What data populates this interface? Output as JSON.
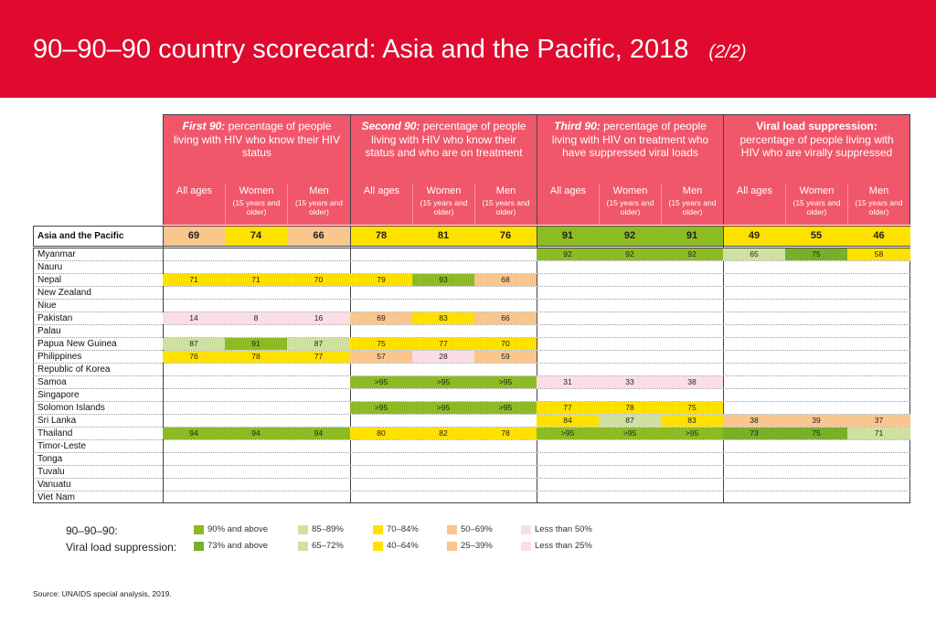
{
  "title": "90–90–90 country scorecard: Asia and the Pacific, 2018",
  "subtitle": "(2/2)",
  "groups": [
    {
      "bold": "First 90:",
      "text": " percentage of people living with HIV who know their HIV status"
    },
    {
      "bold": "Second 90:",
      "text": "  percentage of people living with HIV who know their status and who are on treatment"
    },
    {
      "bold": "Third 90:",
      "text": " percentage of people living with HIV on treatment who have suppressed viral loads"
    },
    {
      "bold": "Viral load suppression:",
      "text": " percentage of people living with HIV who are virally suppressed"
    }
  ],
  "subheaders": {
    "all_ages": "All ages",
    "women": "Women",
    "men": "Men",
    "age_note": "(15 years and older)"
  },
  "colors": {
    "banner": "#e0092e",
    "header": "#f0576b",
    "g90": "#8dbb24",
    "g73": "#7aaf2a",
    "light_green": "#cfe0a0",
    "yellow": "#ffe100",
    "orange": "#f9c68e",
    "pink": "#fbdde5"
  },
  "region": {
    "name": "Asia and the Pacific",
    "values": [
      "69",
      "74",
      "66",
      "78",
      "81",
      "76",
      "91",
      "92",
      "91",
      "49",
      "55",
      "46"
    ],
    "colors": [
      "orange",
      "yellow",
      "orange",
      "yellow",
      "yellow",
      "yellow",
      "g90",
      "g90",
      "g90",
      "yellow",
      "yellow",
      "yellow"
    ]
  },
  "countries": [
    {
      "name": "Myanmar",
      "values": [
        "",
        "",
        "",
        "",
        "",
        "",
        "92",
        "92",
        "92",
        "65",
        "75",
        "58"
      ],
      "colors": [
        "",
        "",
        "",
        "",
        "",
        "",
        "g90",
        "g90",
        "g90",
        "light_green",
        "g73",
        "yellow"
      ]
    },
    {
      "name": "Nauru",
      "values": [
        "",
        "",
        "",
        "",
        "",
        "",
        "",
        "",
        "",
        "",
        "",
        ""
      ],
      "colors": [
        "",
        "",
        "",
        "",
        "",
        "",
        "",
        "",
        "",
        "",
        "",
        ""
      ]
    },
    {
      "name": "Nepal",
      "values": [
        "71",
        "71",
        "70",
        "79",
        "93",
        "68",
        "",
        "",
        "",
        "",
        "",
        ""
      ],
      "colors": [
        "yellow",
        "yellow",
        "yellow",
        "yellow",
        "g90",
        "orange",
        "",
        "",
        "",
        "",
        "",
        ""
      ]
    },
    {
      "name": "New Zealand",
      "values": [
        "",
        "",
        "",
        "",
        "",
        "",
        "",
        "",
        "",
        "",
        "",
        ""
      ],
      "colors": [
        "",
        "",
        "",
        "",
        "",
        "",
        "",
        "",
        "",
        "",
        "",
        ""
      ]
    },
    {
      "name": "Niue",
      "values": [
        "",
        "",
        "",
        "",
        "",
        "",
        "",
        "",
        "",
        "",
        "",
        ""
      ],
      "colors": [
        "",
        "",
        "",
        "",
        "",
        "",
        "",
        "",
        "",
        "",
        "",
        ""
      ]
    },
    {
      "name": "Pakistan",
      "values": [
        "14",
        "8",
        "16",
        "69",
        "83",
        "66",
        "",
        "",
        "",
        "",
        "",
        ""
      ],
      "colors": [
        "pink",
        "pink",
        "pink",
        "orange",
        "yellow",
        "orange",
        "",
        "",
        "",
        "",
        "",
        ""
      ]
    },
    {
      "name": "Palau",
      "values": [
        "",
        "",
        "",
        "",
        "",
        "",
        "",
        "",
        "",
        "",
        "",
        ""
      ],
      "colors": [
        "",
        "",
        "",
        "",
        "",
        "",
        "",
        "",
        "",
        "",
        "",
        ""
      ]
    },
    {
      "name": "Papua New Guinea",
      "values": [
        "87",
        "91",
        "87",
        "75",
        "77",
        "70",
        "",
        "",
        "",
        "",
        "",
        ""
      ],
      "colors": [
        "light_green",
        "g90",
        "light_green",
        "yellow",
        "yellow",
        "yellow",
        "",
        "",
        "",
        "",
        "",
        ""
      ]
    },
    {
      "name": "Philippines",
      "values": [
        "76",
        "78",
        "77",
        "57",
        "28",
        "59",
        "",
        "",
        "",
        "",
        "",
        ""
      ],
      "colors": [
        "yellow",
        "yellow",
        "yellow",
        "orange",
        "pink",
        "orange",
        "",
        "",
        "",
        "",
        "",
        ""
      ]
    },
    {
      "name": "Republic of Korea",
      "values": [
        "",
        "",
        "",
        "",
        "",
        "",
        "",
        "",
        "",
        "",
        "",
        ""
      ],
      "colors": [
        "",
        "",
        "",
        "",
        "",
        "",
        "",
        "",
        "",
        "",
        "",
        ""
      ]
    },
    {
      "name": "Samoa",
      "values": [
        "",
        "",
        "",
        ">95",
        ">95",
        ">95",
        "31",
        "33",
        "38",
        "",
        "",
        ""
      ],
      "colors": [
        "",
        "",
        "",
        "g90",
        "g90",
        "g90",
        "pink",
        "pink",
        "pink",
        "",
        "",
        ""
      ]
    },
    {
      "name": "Singapore",
      "values": [
        "",
        "",
        "",
        "",
        "",
        "",
        "",
        "",
        "",
        "",
        "",
        ""
      ],
      "colors": [
        "",
        "",
        "",
        "",
        "",
        "",
        "",
        "",
        "",
        "",
        "",
        ""
      ]
    },
    {
      "name": "Solomon Islands",
      "values": [
        "",
        "",
        "",
        ">95",
        ">95",
        ">95",
        "77",
        "78",
        "75",
        "",
        "",
        ""
      ],
      "colors": [
        "",
        "",
        "",
        "g90",
        "g90",
        "g90",
        "yellow",
        "yellow",
        "yellow",
        "",
        "",
        ""
      ]
    },
    {
      "name": "Sri Lanka",
      "values": [
        "",
        "",
        "",
        "",
        "",
        "",
        "84",
        "87",
        "83",
        "38",
        "39",
        "37"
      ],
      "colors": [
        "",
        "",
        "",
        "",
        "",
        "",
        "yellow",
        "light_green",
        "yellow",
        "orange",
        "orange",
        "orange"
      ]
    },
    {
      "name": "Thailand",
      "values": [
        "94",
        "94",
        "94",
        "80",
        "82",
        "78",
        ">95",
        ">95",
        ">95",
        "73",
        "75",
        "71"
      ],
      "colors": [
        "g90",
        "g90",
        "g90",
        "yellow",
        "yellow",
        "yellow",
        "g90",
        "g90",
        "g90",
        "g73",
        "g73",
        "light_green"
      ]
    },
    {
      "name": "Timor-Leste",
      "values": [
        "",
        "",
        "",
        "",
        "",
        "",
        "",
        "",
        "",
        "",
        "",
        ""
      ],
      "colors": [
        "",
        "",
        "",
        "",
        "",
        "",
        "",
        "",
        "",
        "",
        "",
        ""
      ]
    },
    {
      "name": "Tonga",
      "values": [
        "",
        "",
        "",
        "",
        "",
        "",
        "",
        "",
        "",
        "",
        "",
        ""
      ],
      "colors": [
        "",
        "",
        "",
        "",
        "",
        "",
        "",
        "",
        "",
        "",
        "",
        ""
      ]
    },
    {
      "name": "Tuvalu",
      "values": [
        "",
        "",
        "",
        "",
        "",
        "",
        "",
        "",
        "",
        "",
        "",
        ""
      ],
      "colors": [
        "",
        "",
        "",
        "",
        "",
        "",
        "",
        "",
        "",
        "",
        "",
        ""
      ]
    },
    {
      "name": "Vanuatu",
      "values": [
        "",
        "",
        "",
        "",
        "",
        "",
        "",
        "",
        "",
        "",
        "",
        ""
      ],
      "colors": [
        "",
        "",
        "",
        "",
        "",
        "",
        "",
        "",
        "",
        "",
        "",
        ""
      ]
    },
    {
      "name": "Viet Nam",
      "values": [
        "",
        "",
        "",
        "",
        "",
        "",
        "",
        "",
        "",
        "",
        "",
        ""
      ],
      "colors": [
        "",
        "",
        "",
        "",
        "",
        "",
        "",
        "",
        "",
        "",
        "",
        ""
      ]
    }
  ],
  "legend": {
    "row1_label": "90–90–90:",
    "row2_label": "Viral load suppression:",
    "row1": [
      {
        "text": "90% and above",
        "color": "g90"
      },
      {
        "text": "85–89%",
        "color": "light_green"
      },
      {
        "text": "70–84%",
        "color": "yellow"
      },
      {
        "text": "50–69%",
        "color": "orange"
      },
      {
        "text": "Less than 50%",
        "color": "pink"
      }
    ],
    "row2": [
      {
        "text": "73% and above",
        "color": "g73"
      },
      {
        "text": "65–72%",
        "color": "light_green"
      },
      {
        "text": "40–64%",
        "color": "yellow"
      },
      {
        "text": "25–39%",
        "color": "orange"
      },
      {
        "text": "Less than 25%",
        "color": "pink"
      }
    ]
  },
  "source": "Source: UNAIDS special analysis, 2019."
}
